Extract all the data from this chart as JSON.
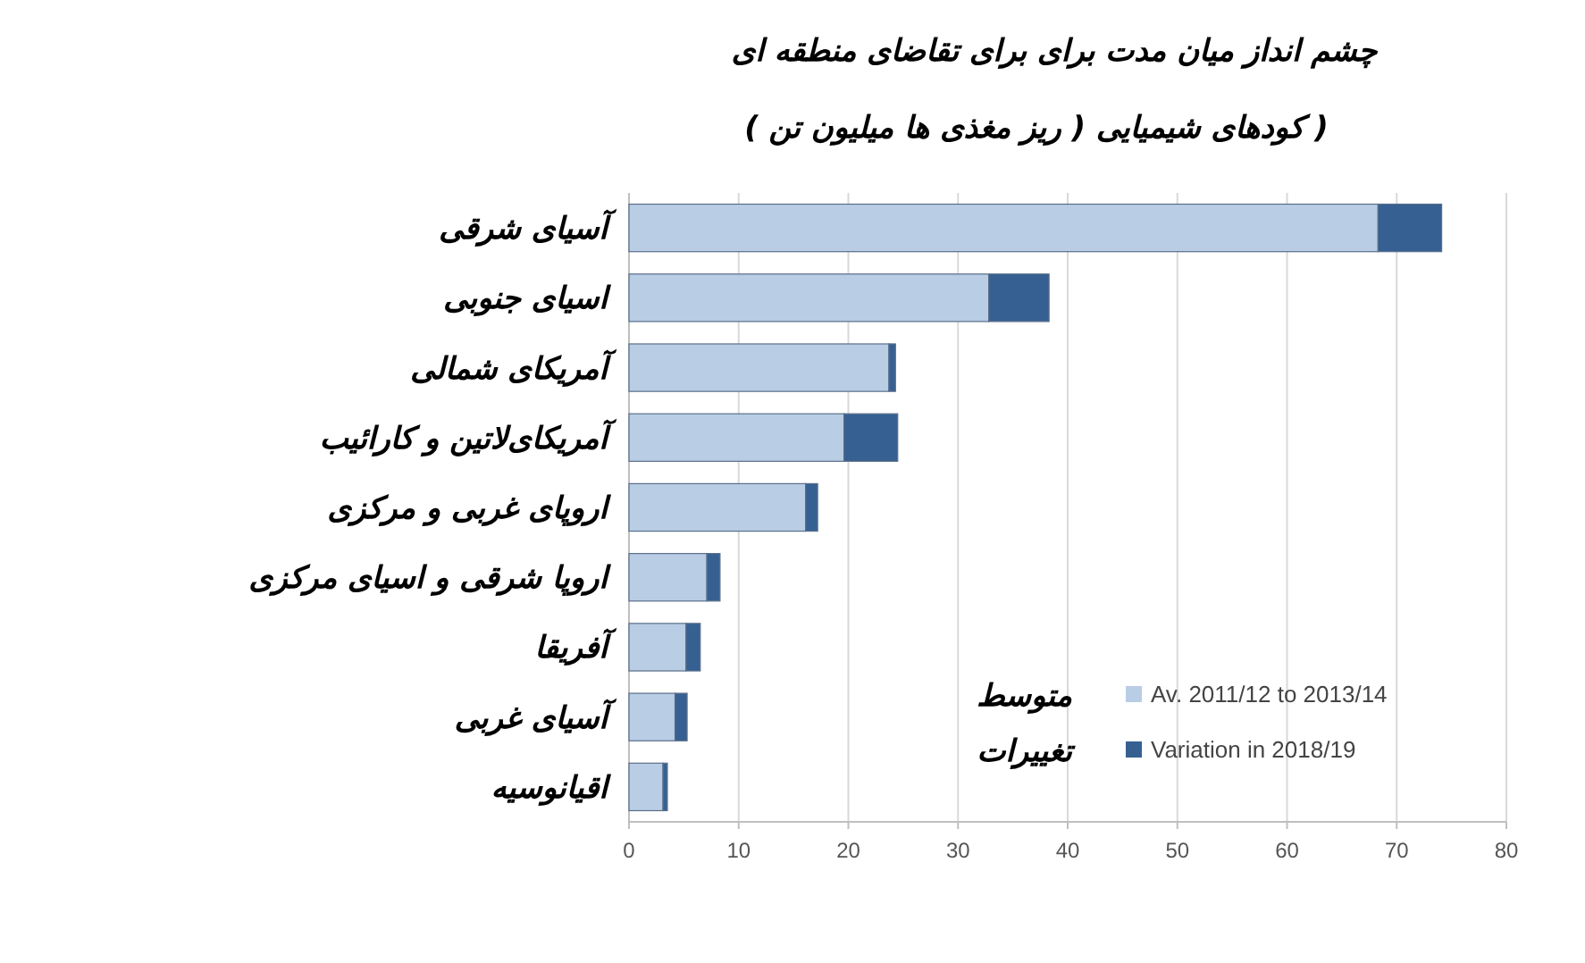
{
  "chart_data": {
    "type": "bar",
    "orientation": "horizontal",
    "stacked": true,
    "title": "چشم انداز میان مدت برای برای تقاضای منطقه ای",
    "subtitle": "( کودهای شیمیایی ( ریز مغذی ها میلیون تن )",
    "categories": [
      "آسیای شرقی",
      "اسیای جنوبی",
      "آمریکای شمالی",
      "آمریکای‌لاتین و کارائیب",
      "اروپای غربی و مرکزی",
      "اروپا شرقی و اسیای مرکزی",
      "آفریقا",
      "آسیای غربی",
      "اقیانوسیه"
    ],
    "series": [
      {
        "name": "Av. 2011/12 to 2013/14",
        "color": "#b9cde5",
        "values": [
          68.3,
          32.8,
          23.7,
          19.6,
          16.1,
          7.1,
          5.2,
          4.2,
          3.1
        ]
      },
      {
        "name": "Variation in 2018/19",
        "color": "#366092",
        "values": [
          5.8,
          5.5,
          0.6,
          4.9,
          1.1,
          1.2,
          1.3,
          1.1,
          0.4
        ]
      }
    ],
    "xlim": [
      0,
      80
    ],
    "xticks": [
      0,
      10,
      20,
      30,
      40,
      50,
      60,
      70,
      80
    ],
    "grid": "x",
    "legend": "bottom right",
    "annotations": [
      "متوسط",
      "تغییرات"
    ]
  }
}
